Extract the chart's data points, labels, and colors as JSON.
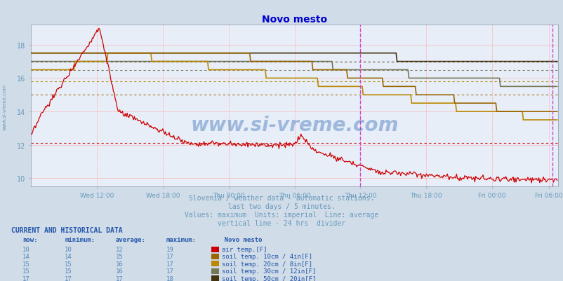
{
  "title": "Novo mesto",
  "background_color": "#d0dce8",
  "plot_bg_color": "#e8eef8",
  "title_color": "#0000cc",
  "title_fontsize": 10,
  "xlim": [
    0,
    576
  ],
  "ylim": [
    9.5,
    19.2
  ],
  "yticks": [
    10,
    12,
    14,
    16,
    18
  ],
  "xtick_labels": [
    "Wed 12:00",
    "Wed 18:00",
    "Thu 00:00",
    "Thu 06:00",
    "Thu 12:00",
    "Thu 18:00",
    "Fri 00:00",
    "Fri 06:00"
  ],
  "xtick_positions": [
    72,
    144,
    216,
    288,
    360,
    432,
    504,
    566
  ],
  "divider_x": 360,
  "divider_color": "#cc44cc",
  "end_line_x": 570,
  "subtitle_lines": [
    "Slovenia / weather data - automatic stations.",
    "last two days / 5 minutes.",
    "Values: maximum  Units: imperial  Line: average",
    "vertical line - 24 hrs  divider"
  ],
  "subtitle_color": "#6699bb",
  "subtitle_fontsize": 7,
  "watermark": "www.si-vreme.com",
  "watermark_color": "#1155aa",
  "watermark_alpha": 0.35,
  "series": {
    "air_temp": {
      "color": "#cc0000",
      "avg_value": 12.1,
      "label": "air temp.[F]"
    },
    "soil_10": {
      "color": "#996600",
      "avg_value": 15.0,
      "label": "soil temp. 10cm / 4in[F]"
    },
    "soil_20": {
      "color": "#bb8800",
      "avg_value": 15.8,
      "label": "soil temp. 20cm / 8in[F]"
    },
    "soil_30": {
      "color": "#777755",
      "avg_value": 16.5,
      "label": "soil temp. 30cm / 12in[F]"
    },
    "soil_50": {
      "color": "#443311",
      "avg_value": 17.0,
      "label": "soil temp. 50cm / 20in[F]"
    }
  },
  "table_header_color": "#2255aa",
  "table_data_color": "#5588bb",
  "table_label_color": "#2255aa",
  "table_title_color": "#2255aa",
  "left_label_color": "#6699bb",
  "rows": [
    {
      "now": "10",
      "min": "10",
      "avg": "12",
      "max": "19",
      "color": "#cc0000",
      "label": "air temp.[F]"
    },
    {
      "now": "14",
      "min": "14",
      "avg": "15",
      "max": "17",
      "color": "#996600",
      "label": "soil temp. 10cm / 4in[F]"
    },
    {
      "now": "15",
      "min": "15",
      "avg": "16",
      "max": "17",
      "color": "#bb8800",
      "label": "soil temp. 20cm / 8in[F]"
    },
    {
      "now": "15",
      "min": "15",
      "avg": "16",
      "max": "17",
      "color": "#777755",
      "label": "soil temp. 30cm / 12in[F]"
    },
    {
      "now": "17",
      "min": "17",
      "avg": "17",
      "max": "18",
      "color": "#443311",
      "label": "soil temp. 50cm / 20in[F]"
    }
  ]
}
